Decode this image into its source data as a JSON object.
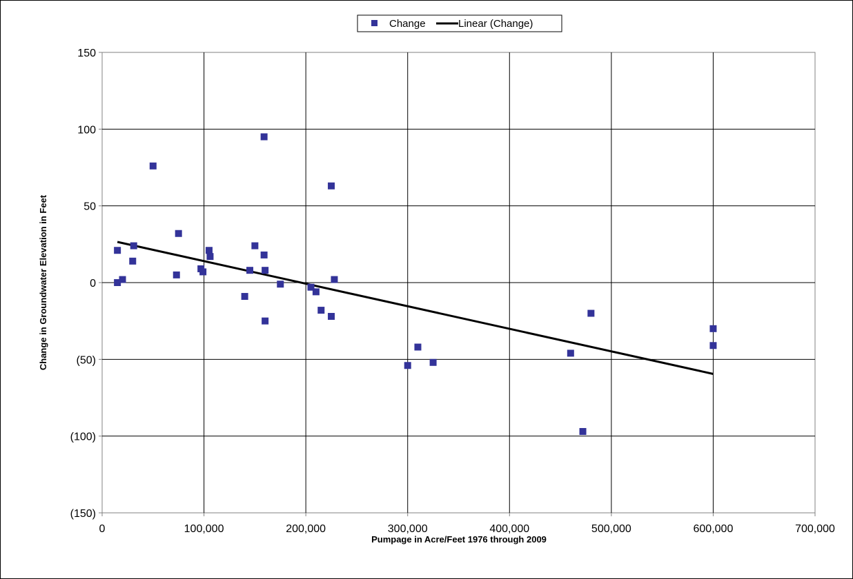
{
  "chart_data": {
    "type": "scatter",
    "title": "",
    "xlabel": "Pumpage in Acre/Feet 1976 through 2009",
    "ylabel": "Change in Groundwater Elevation in Feet",
    "xlim": [
      0,
      700000
    ],
    "ylim": [
      -150,
      150
    ],
    "x_ticks": [
      0,
      100000,
      200000,
      300000,
      400000,
      500000,
      600000,
      700000
    ],
    "x_tick_labels": [
      "0",
      "100,000",
      "200,000",
      "300,000",
      "400,000",
      "500,000",
      "600,000",
      "700,000"
    ],
    "y_ticks": [
      150,
      100,
      50,
      0,
      -50,
      -100,
      -150
    ],
    "y_tick_labels": [
      "150",
      "100",
      "50",
      "0",
      "(50)",
      "(100)",
      "(150)"
    ],
    "grid": true,
    "legend_position": "top-center",
    "series": [
      {
        "name": "Change",
        "marker": "square",
        "color": "#333399",
        "points": [
          [
            15000,
            21
          ],
          [
            15000,
            0
          ],
          [
            20000,
            2
          ],
          [
            30000,
            14
          ],
          [
            31000,
            24
          ],
          [
            50000,
            76
          ],
          [
            73000,
            5
          ],
          [
            75000,
            32
          ],
          [
            97000,
            9
          ],
          [
            99000,
            7
          ],
          [
            105000,
            21
          ],
          [
            106000,
            17
          ],
          [
            140000,
            -9
          ],
          [
            145000,
            8
          ],
          [
            150000,
            24
          ],
          [
            159000,
            95
          ],
          [
            159000,
            18
          ],
          [
            160000,
            8
          ],
          [
            160000,
            -25
          ],
          [
            175000,
            -1
          ],
          [
            205000,
            -3
          ],
          [
            210000,
            -6
          ],
          [
            215000,
            -18
          ],
          [
            225000,
            63
          ],
          [
            225000,
            -22
          ],
          [
            228000,
            2
          ],
          [
            300000,
            -54
          ],
          [
            310000,
            -42
          ],
          [
            325000,
            -52
          ],
          [
            460000,
            -46
          ],
          [
            472000,
            -97
          ],
          [
            480000,
            -20
          ],
          [
            600000,
            -30
          ],
          [
            600000,
            -41
          ]
        ]
      },
      {
        "name": "Linear (Change)",
        "type": "line",
        "color": "#000000",
        "points": [
          [
            15000,
            26.5
          ],
          [
            600000,
            -59.5
          ]
        ]
      }
    ]
  }
}
